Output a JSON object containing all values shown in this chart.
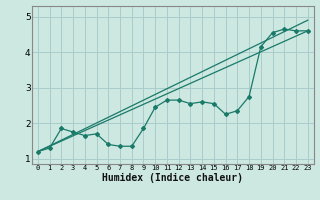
{
  "title": "",
  "xlabel": "Humidex (Indice chaleur)",
  "bg_color": "#cce8e0",
  "grid_color": "#aacccc",
  "line_color": "#1a7a6a",
  "x_data": [
    0,
    1,
    2,
    3,
    4,
    5,
    6,
    7,
    8,
    9,
    10,
    11,
    12,
    13,
    14,
    15,
    16,
    17,
    18,
    19,
    20,
    21,
    22,
    23
  ],
  "y_data": [
    1.2,
    1.3,
    1.85,
    1.75,
    1.65,
    1.7,
    1.4,
    1.35,
    1.35,
    1.85,
    2.45,
    2.65,
    2.65,
    2.55,
    2.6,
    2.55,
    2.25,
    2.35,
    2.75,
    4.15,
    4.55,
    4.65,
    4.6,
    4.6
  ],
  "line1_x": [
    0,
    23
  ],
  "line1_y": [
    1.2,
    4.9
  ],
  "line2_x": [
    0,
    23
  ],
  "line2_y": [
    1.2,
    4.6
  ],
  "ylim": [
    0.85,
    5.3
  ],
  "xlim": [
    -0.5,
    23.5
  ],
  "yticks": [
    1,
    2,
    3,
    4,
    5
  ],
  "xticks": [
    0,
    1,
    2,
    3,
    4,
    5,
    6,
    7,
    8,
    9,
    10,
    11,
    12,
    13,
    14,
    15,
    16,
    17,
    18,
    19,
    20,
    21,
    22,
    23
  ]
}
